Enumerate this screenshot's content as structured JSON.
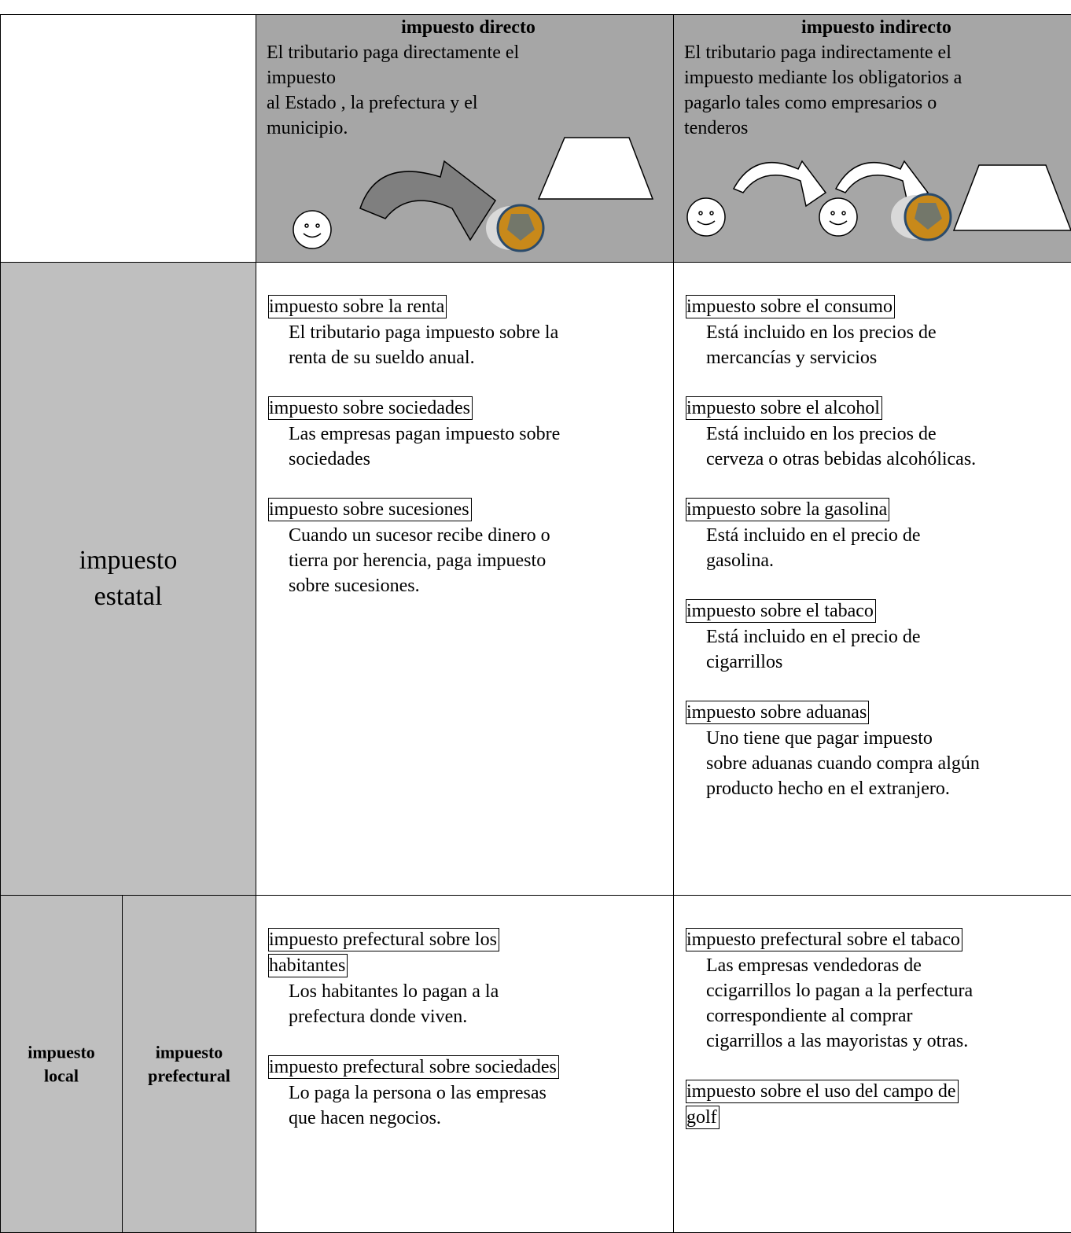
{
  "header": {
    "directo": {
      "title": "impuesto directo",
      "lines": [
        "El tributario paga directamente el",
        "impuesto",
        "al Estado , la prefectura y el",
        "municipio."
      ]
    },
    "indirecto": {
      "title": "impuesto indirecto",
      "lines": [
        "El tributario paga indirectamente el",
        "impuesto mediante los obligatorios a",
        "pagarlo tales como empresarios o",
        "tenderos"
      ]
    }
  },
  "rows": [
    {
      "label": [
        "impuesto",
        "estatal"
      ],
      "directo": [
        {
          "title": [
            "impuesto sobre la renta"
          ],
          "lines": [
            "El tributario paga impuesto sobre la",
            "renta de su sueldo anual."
          ]
        },
        {
          "title": [
            "impuesto sobre sociedades"
          ],
          "lines": [
            "Las empresas pagan impuesto sobre",
            "sociedades"
          ]
        },
        {
          "title": [
            "impuesto sobre sucesiones"
          ],
          "lines": [
            "Cuando un sucesor recibe dinero o",
            "tierra por herencia, paga impuesto",
            "sobre sucesiones."
          ]
        }
      ],
      "indirecto": [
        {
          "title": [
            "impuesto sobre el consumo"
          ],
          "lines": [
            "Está incluido en los precios de",
            "mercancías y servicios"
          ]
        },
        {
          "title": [
            "impuesto sobre el alcohol"
          ],
          "lines": [
            "Está incluido en los precios de",
            "cerveza o otras bebidas alcohólicas."
          ]
        },
        {
          "title": [
            "impuesto sobre la gasolina"
          ],
          "lines": [
            "Está incluido en el precio de",
            "gasolina."
          ]
        },
        {
          "title": [
            "impuesto sobre el tabaco"
          ],
          "lines": [
            "Está incluido en el precio de",
            "cigarrillos"
          ]
        },
        {
          "title": [
            "impuesto sobre aduanas"
          ],
          "lines": [
            "Uno tiene que pagar impuesto",
            "sobre aduanas cuando compra algún",
            "producto hecho en el extranjero."
          ]
        }
      ]
    },
    {
      "label": [
        "impuesto",
        "local"
      ],
      "sublabel": [
        "impuesto",
        "prefectural"
      ],
      "directo": [
        {
          "title": [
            "impuesto prefectural sobre los",
            "habitantes"
          ],
          "lines": [
            "Los habitantes lo pagan a la",
            "prefectura donde viven."
          ]
        },
        {
          "title": [
            "impuesto prefectural sobre sociedades"
          ],
          "lines": [
            "Lo paga la persona o las empresas",
            "que hacen negocios."
          ]
        }
      ],
      "indirecto": [
        {
          "title": [
            "impuesto prefectural sobre el tabaco"
          ],
          "lines": [
            "Las empresas vendedoras de",
            "ccigarrillos lo pagan a la perfectura",
            "correspondiente al comprar",
            "cigarrillos a las mayoristas y otras."
          ]
        },
        {
          "title": [
            "impuesto sobre el uso del campo de",
            "golf"
          ],
          "lines": []
        }
      ]
    }
  ]
}
